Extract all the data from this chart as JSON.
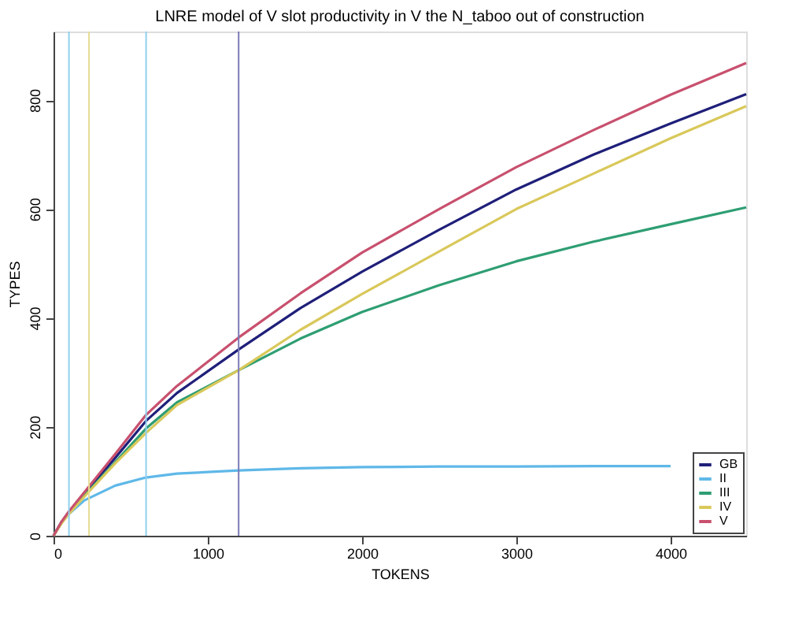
{
  "chart_data": {
    "type": "line",
    "title": "LNRE model of V slot productivity in  V the N_taboo out of  construction",
    "xlabel": "TOKENS",
    "ylabel": "TYPES",
    "x": [
      0,
      50,
      100,
      200,
      400,
      600,
      800,
      1200,
      1600,
      2000,
      2500,
      3000,
      3500,
      4000,
      4490
    ],
    "series": [
      {
        "name": "GB",
        "color": "#1f1f7a",
        "values": [
          0,
          24,
          43,
          77,
          143,
          211,
          262,
          342,
          418,
          485,
          562,
          636,
          700,
          757,
          811
        ]
      },
      {
        "name": "II",
        "color": "#5fb8e8",
        "values": [
          0,
          25,
          40,
          65,
          92,
          107,
          114,
          120,
          124,
          126,
          127,
          127,
          128,
          128,
          null
        ]
      },
      {
        "name": "III",
        "color": "#2e9e73",
        "values": [
          0,
          23,
          42,
          74,
          135,
          197,
          245,
          304,
          362,
          411,
          460,
          504,
          540,
          572,
          603
        ]
      },
      {
        "name": "IV",
        "color": "#d9c85a",
        "values": [
          0,
          22,
          40,
          72,
          133,
          189,
          240,
          304,
          378,
          444,
          522,
          600,
          665,
          730,
          789
        ]
      },
      {
        "name": "V",
        "color": "#c8506e",
        "values": [
          0,
          25,
          45,
          80,
          150,
          222,
          275,
          364,
          445,
          520,
          600,
          677,
          745,
          810,
          868
        ]
      }
    ],
    "ref_lines": [
      {
        "axis": "x",
        "value": 100,
        "color": "#8fd0ee"
      },
      {
        "axis": "x",
        "value": 230,
        "color": "#e6dc96"
      },
      {
        "axis": "x",
        "value": 600,
        "color": "#8fd0ee"
      },
      {
        "axis": "x",
        "value": 1200,
        "color": "#7a7ab8"
      }
    ],
    "xlim": [
      0,
      4490
    ],
    "xticks": [
      0,
      1000,
      2000,
      3000,
      4000
    ],
    "ylim": [
      0,
      926
    ],
    "yticks": [
      0,
      200,
      400,
      600,
      800
    ],
    "grid": false,
    "legend": "bottom right"
  }
}
